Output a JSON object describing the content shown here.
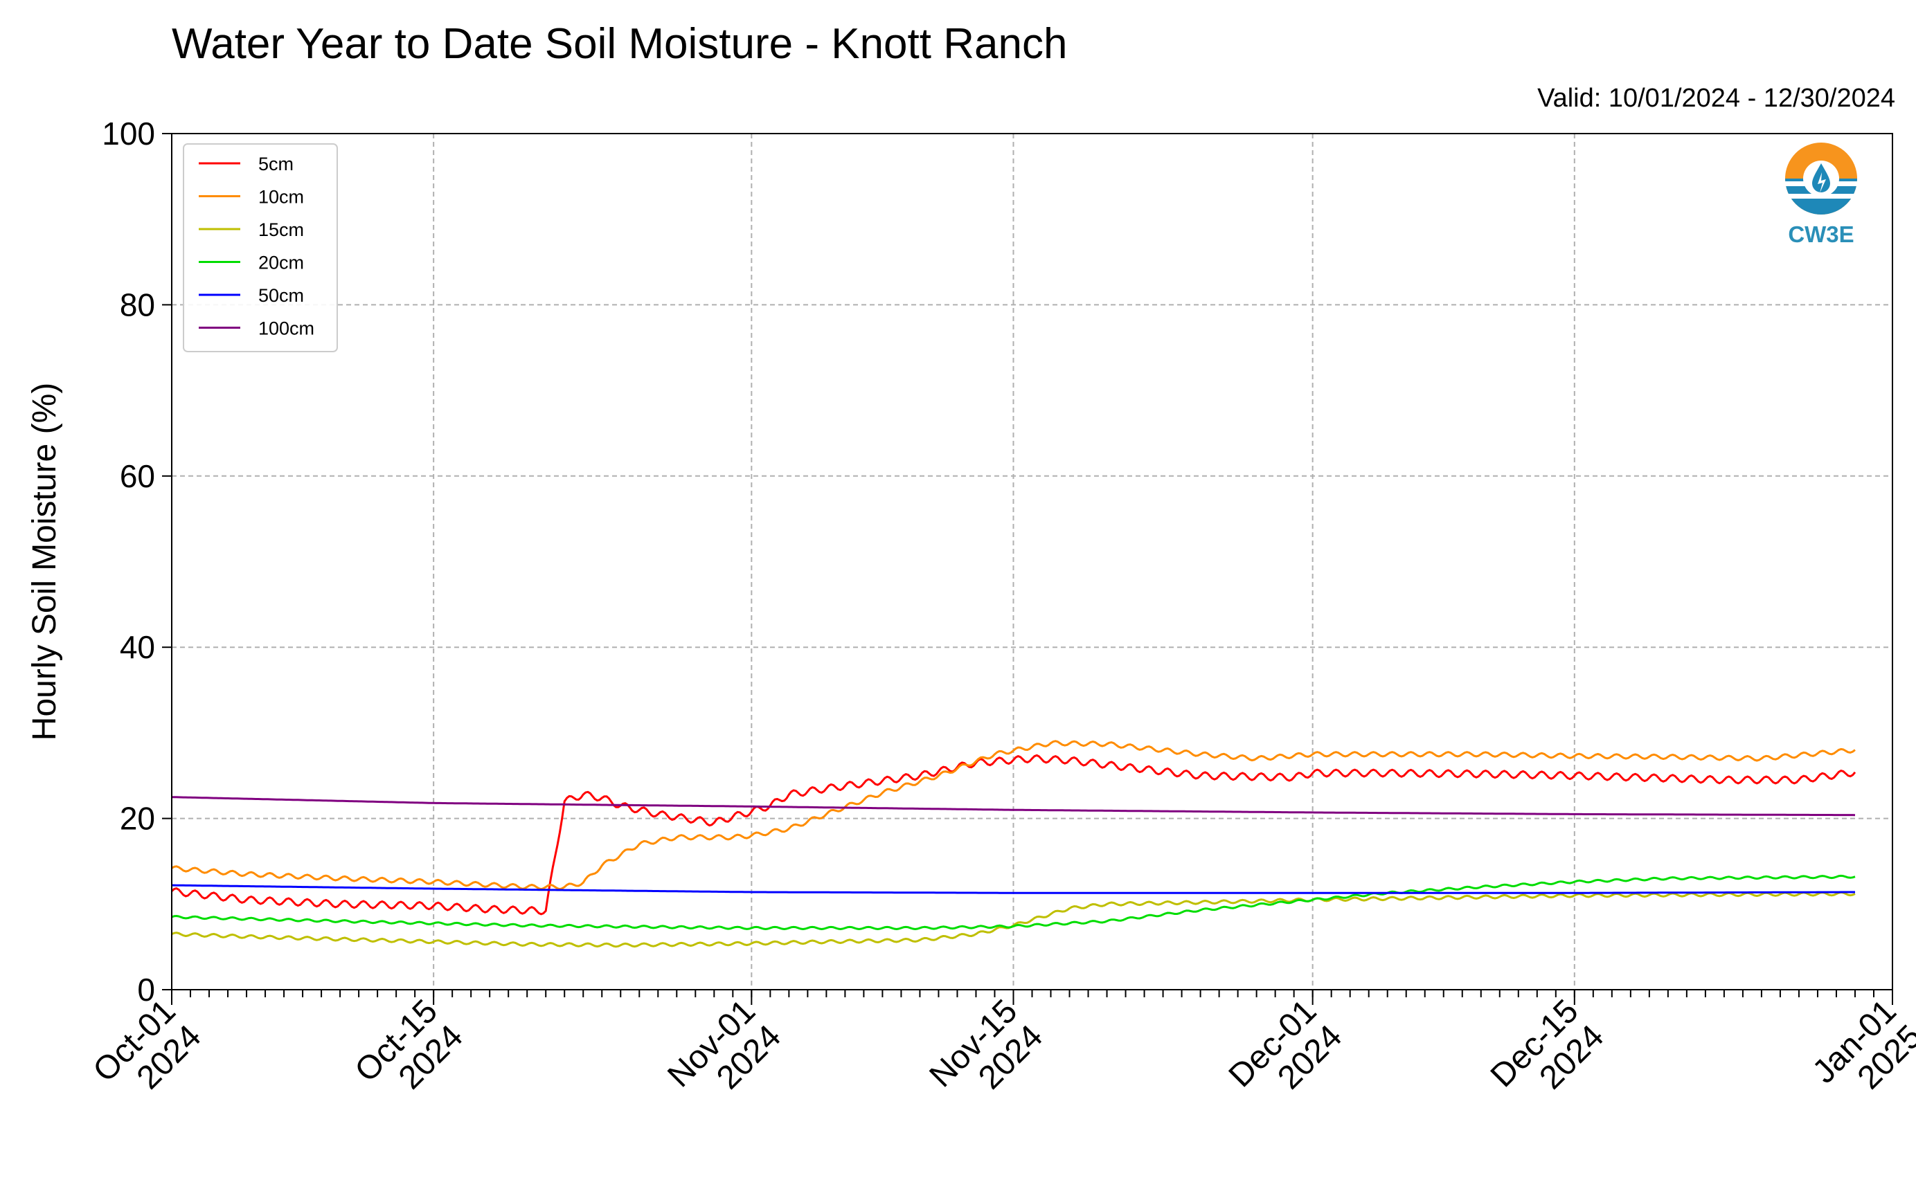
{
  "chart_data": {
    "type": "line",
    "title": "Water Year to Date Soil Moisture - Knott Ranch",
    "subtitle": "Valid: 10/01/2024 - 12/30/2024",
    "ylabel": "Hourly Soil Moisture (%)",
    "xlabel": "",
    "ylim": [
      0,
      100
    ],
    "yticks": [
      0,
      20,
      40,
      60,
      80,
      100
    ],
    "xlim": [
      "2024-10-01",
      "2025-01-01"
    ],
    "xticks": [
      {
        "date": "2024-10-01",
        "line1": "Oct-01",
        "line2": "2024"
      },
      {
        "date": "2024-10-15",
        "line1": "Oct-15",
        "line2": "2024"
      },
      {
        "date": "2024-11-01",
        "line1": "Nov-01",
        "line2": "2024"
      },
      {
        "date": "2024-11-15",
        "line1": "Nov-15",
        "line2": "2024"
      },
      {
        "date": "2024-12-01",
        "line1": "Dec-01",
        "line2": "2024"
      },
      {
        "date": "2024-12-15",
        "line1": "Dec-15",
        "line2": "2024"
      },
      {
        "date": "2025-01-01",
        "line1": "Jan-01",
        "line2": "2025"
      }
    ],
    "grid": true,
    "legend_position": "top-left",
    "logo_text": "CW3E",
    "series": [
      {
        "name": "5cm",
        "color": "#ff0000",
        "x": [
          "2024-10-01",
          "2024-10-05",
          "2024-10-10",
          "2024-10-15",
          "2024-10-18",
          "2024-10-21",
          "2024-10-22",
          "2024-10-23",
          "2024-10-24",
          "2024-10-25",
          "2024-10-27",
          "2024-10-30",
          "2024-10-31",
          "2024-11-01",
          "2024-11-02",
          "2024-11-03",
          "2024-11-05",
          "2024-11-10",
          "2024-11-13",
          "2024-11-16",
          "2024-11-18",
          "2024-11-21",
          "2024-11-25",
          "2024-11-30",
          "2024-12-01",
          "2024-12-05",
          "2024-12-10",
          "2024-12-15",
          "2024-12-20",
          "2024-12-23",
          "2024-12-27",
          "2024-12-30"
        ],
        "y": [
          11.5,
          10.5,
          10.0,
          9.8,
          9.4,
          9.2,
          22.0,
          22.8,
          22.4,
          21.5,
          20.5,
          19.5,
          20.2,
          20.8,
          21.5,
          22.8,
          23.5,
          25.0,
          26.5,
          27.0,
          26.8,
          26.0,
          25.0,
          24.8,
          25.3,
          25.3,
          25.2,
          25.0,
          24.7,
          24.5,
          24.5,
          25.4
        ],
        "wiggle": 0.8
      },
      {
        "name": "10cm",
        "color": "#ff8c00",
        "x": [
          "2024-10-01",
          "2024-10-05",
          "2024-10-10",
          "2024-10-15",
          "2024-10-20",
          "2024-10-22",
          "2024-10-23",
          "2024-10-24",
          "2024-10-26",
          "2024-10-28",
          "2024-10-31",
          "2024-11-01",
          "2024-11-03",
          "2024-11-05",
          "2024-11-08",
          "2024-11-11",
          "2024-11-14",
          "2024-11-17",
          "2024-11-20",
          "2024-11-25",
          "2024-11-28",
          "2024-12-01",
          "2024-12-10",
          "2024-12-15",
          "2024-12-20",
          "2024-12-25",
          "2024-12-30"
        ],
        "y": [
          14.2,
          13.5,
          13.0,
          12.6,
          12.0,
          12.0,
          12.5,
          14.5,
          17.0,
          17.8,
          17.8,
          18.0,
          18.8,
          20.5,
          23.0,
          25.0,
          27.5,
          28.8,
          28.7,
          27.5,
          27.0,
          27.5,
          27.5,
          27.3,
          27.2,
          27.0,
          28.0
        ],
        "wiggle": 0.5
      },
      {
        "name": "15cm",
        "color": "#bfbf00",
        "x": [
          "2024-10-01",
          "2024-10-05",
          "2024-10-10",
          "2024-10-15",
          "2024-10-20",
          "2024-10-25",
          "2024-11-01",
          "2024-11-05",
          "2024-11-10",
          "2024-11-13",
          "2024-11-15",
          "2024-11-18",
          "2024-11-20",
          "2024-11-25",
          "2024-12-01",
          "2024-12-15",
          "2024-12-30"
        ],
        "y": [
          6.5,
          6.2,
          5.9,
          5.6,
          5.3,
          5.2,
          5.4,
          5.6,
          5.8,
          6.5,
          7.5,
          9.5,
          10.0,
          10.2,
          10.5,
          11.0,
          11.2
        ],
        "wiggle": 0.35
      },
      {
        "name": "20cm",
        "color": "#00dd00",
        "x": [
          "2024-10-01",
          "2024-10-10",
          "2024-10-20",
          "2024-11-01",
          "2024-11-10",
          "2024-11-15",
          "2024-11-20",
          "2024-11-25",
          "2024-12-01",
          "2024-12-05",
          "2024-12-10",
          "2024-12-15",
          "2024-12-20",
          "2024-12-30"
        ],
        "y": [
          8.5,
          8.0,
          7.5,
          7.2,
          7.2,
          7.4,
          8.0,
          9.3,
          10.5,
          11.3,
          12.0,
          12.6,
          13.0,
          13.2
        ],
        "wiggle": 0.25
      },
      {
        "name": "50cm",
        "color": "#0000ff",
        "x": [
          "2024-10-01",
          "2024-10-15",
          "2024-11-01",
          "2024-11-15",
          "2024-12-01",
          "2024-12-15",
          "2024-12-30"
        ],
        "y": [
          12.2,
          11.8,
          11.4,
          11.3,
          11.3,
          11.3,
          11.4
        ],
        "wiggle": 0.0
      },
      {
        "name": "100cm",
        "color": "#800080",
        "x": [
          "2024-10-01",
          "2024-10-15",
          "2024-11-01",
          "2024-11-15",
          "2024-12-01",
          "2024-12-15",
          "2024-12-30"
        ],
        "y": [
          22.5,
          21.8,
          21.4,
          21.0,
          20.7,
          20.5,
          20.4
        ],
        "wiggle": 0.0
      }
    ]
  }
}
